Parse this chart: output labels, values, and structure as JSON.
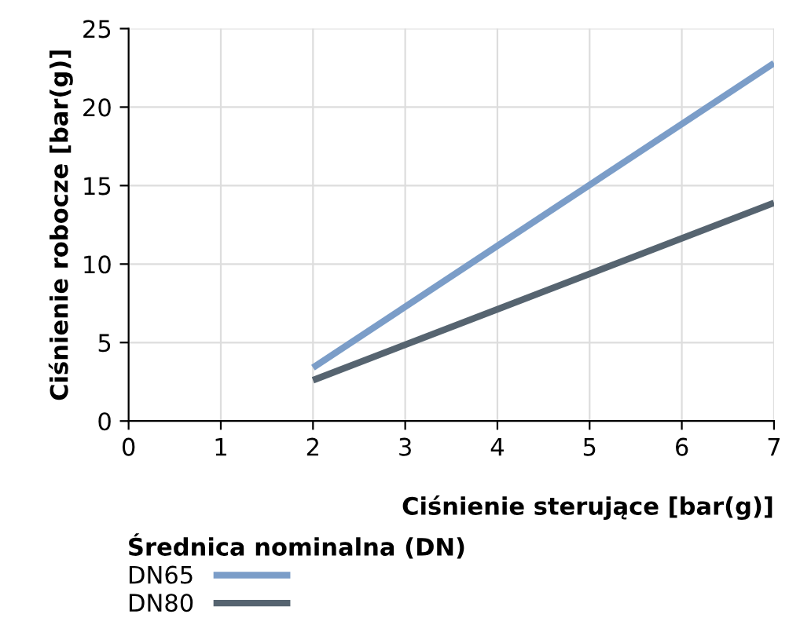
{
  "chart_data": {
    "type": "line",
    "xlabel": "Ciśnienie sterujące [bar(g)]",
    "ylabel": "Ciśnienie robocze [bar(g)]",
    "legend_title": "Średnica nominalna (DN)",
    "series": [
      {
        "name": "DN65",
        "color": "#7b9dc8",
        "values": [
          3.4,
          22.8
        ]
      },
      {
        "name": "DN80",
        "color": "#566470",
        "values": [
          2.6,
          13.9
        ]
      }
    ],
    "x": [
      2,
      7
    ],
    "xlim": [
      0,
      7
    ],
    "xticks": [
      0,
      1,
      2,
      3,
      4,
      5,
      6,
      7
    ],
    "ylim": [
      0,
      25
    ],
    "yticks": [
      0,
      5,
      10,
      15,
      20,
      25
    ],
    "grid": true,
    "legend": "bottom",
    "marker": "none",
    "line_style": "solid"
  }
}
